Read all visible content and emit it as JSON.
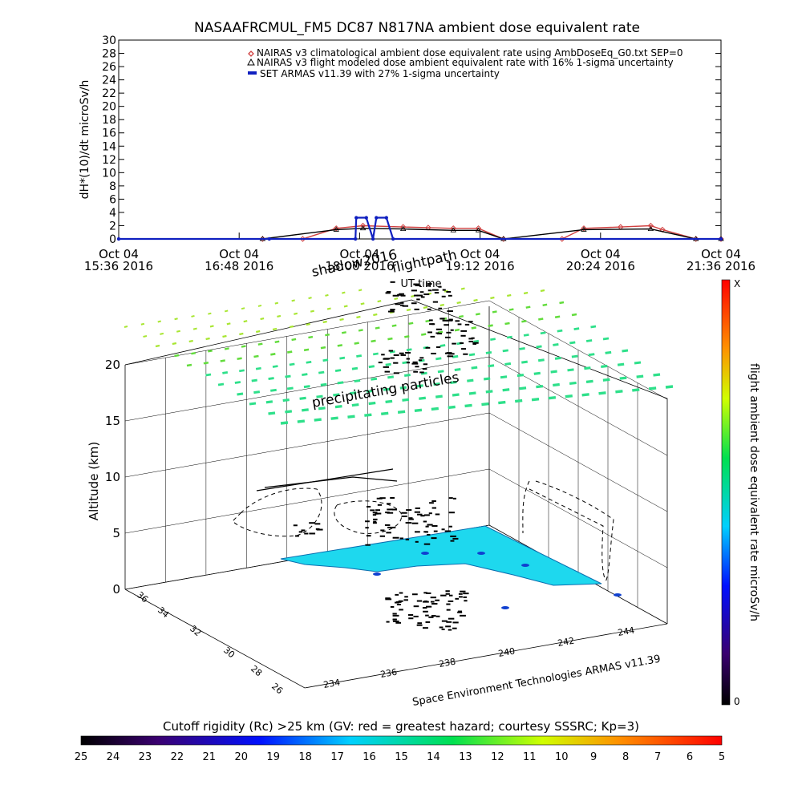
{
  "chart_data": [
    {
      "type": "line",
      "title": "NASAAFRCMUL_FM5 DC87 N817NA ambient dose equivalent rate",
      "xlabel": "UT time",
      "ylabel": "dH*(10)/dt microSv/h",
      "ylim": [
        0,
        30
      ],
      "yticks": [
        "0",
        "2",
        "4",
        "6",
        "8",
        "10",
        "12",
        "14",
        "16",
        "18",
        "20",
        "22",
        "24",
        "26",
        "28",
        "30"
      ],
      "xticks": [
        {
          "top": "Oct 04",
          "bottom": "15:36 2016",
          "t": 0
        },
        {
          "top": "Oct 04",
          "bottom": "16:48 2016",
          "t": 72
        },
        {
          "top": "Oct 04",
          "bottom": "18:00 2016",
          "t": 144
        },
        {
          "top": "Oct 04",
          "bottom": "19:12 2016",
          "t": 216
        },
        {
          "top": "Oct 04",
          "bottom": "20:24 2016",
          "t": 288
        },
        {
          "top": "Oct 04",
          "bottom": "21:36 2016",
          "t": 360
        }
      ],
      "legend": [
        {
          "text": "NAIRAS v3 climatological ambient dose equivalent rate using AmbDoseEq_G0.txt SEP=0",
          "color": "#d04040",
          "marker": "diamond"
        },
        {
          "text": "NAIRAS v3 flight modeled dose ambient equivalent rate with 16% 1-sigma uncertainty",
          "color": "#000000",
          "marker": "triangle"
        },
        {
          "text": "SET ARMAS v11.39 with 27% 1-sigma uncertainty",
          "color": "#1020c0",
          "marker": "dot"
        }
      ],
      "series": [
        {
          "name": "NAIRAS v3 climatological ambient dose equivalent rate using AmbDoseEq_G0.txt SEP=0",
          "color": "#d04040",
          "x": [
            86,
            110,
            130,
            146,
            170,
            185,
            200,
            215,
            230,
            265,
            278,
            300,
            318,
            325,
            345,
            360
          ],
          "y": [
            0,
            0,
            1.6,
            2,
            1.8,
            1.7,
            1.6,
            1.6,
            0,
            0,
            1.6,
            1.8,
            2,
            1.4,
            0,
            0
          ]
        },
        {
          "name": "NAIRAS v3 flight modeled dose ambient equivalent rate with 16% 1-sigma uncertainty",
          "color": "#000000",
          "x": [
            86,
            130,
            146,
            170,
            200,
            215,
            230,
            278,
            318,
            345,
            360
          ],
          "y": [
            0,
            1.4,
            1.6,
            1.5,
            1.3,
            1.3,
            0,
            1.4,
            1.5,
            0,
            0
          ]
        },
        {
          "name": "SET ARMAS v11.39 with 27% 1-sigma uncertainty",
          "color": "#1020c0",
          "x": [
            0,
            90,
            141.5,
            142,
            148,
            152,
            154,
            160,
            164,
            360
          ],
          "y": [
            0,
            0,
            0,
            3.2,
            3.2,
            0,
            3.2,
            3.2,
            0,
            0
          ]
        }
      ]
    },
    {
      "type": "scatter",
      "subtype": "3d-perspective",
      "labels": {
        "shadow": "shadow2016",
        "flightpath": "flightpath",
        "precip": "precipitating particles",
        "zlabel": "Altitude (km)",
        "xlabel": "Space Environment Technologies ARMAS v11.39",
        "colorbar_label": "flight ambient dose equivalent rate microSv/h",
        "colorbar_top": "X",
        "colorbar_bottom": "0"
      },
      "zticks": [
        "0",
        "5",
        "10",
        "15",
        "20"
      ],
      "xticks": [
        "234",
        "236",
        "238",
        "240",
        "242",
        "244"
      ],
      "yticks": [
        "26",
        "28",
        "30",
        "32",
        "34",
        "36"
      ],
      "zlim": [
        0,
        20
      ]
    },
    {
      "type": "colorbar",
      "title": "Cutoff rigidity (Rc) >25 km (GV: red = greatest hazard; courtesy SSSRC; Kp=3)",
      "ticks": [
        "25",
        "24",
        "23",
        "22",
        "21",
        "20",
        "19",
        "18",
        "17",
        "16",
        "15",
        "14",
        "13",
        "12",
        "11",
        "10",
        "9",
        "8",
        "7",
        "6",
        "5"
      ],
      "range": [
        25,
        5
      ]
    }
  ]
}
